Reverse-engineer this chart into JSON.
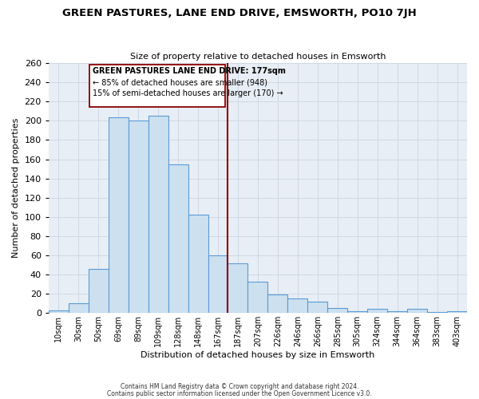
{
  "title": "GREEN PASTURES, LANE END DRIVE, EMSWORTH, PO10 7JH",
  "subtitle": "Size of property relative to detached houses in Emsworth",
  "xlabel": "Distribution of detached houses by size in Emsworth",
  "ylabel": "Number of detached properties",
  "bar_labels": [
    "10sqm",
    "30sqm",
    "50sqm",
    "69sqm",
    "89sqm",
    "109sqm",
    "128sqm",
    "148sqm",
    "167sqm",
    "187sqm",
    "207sqm",
    "226sqm",
    "246sqm",
    "266sqm",
    "285sqm",
    "305sqm",
    "324sqm",
    "344sqm",
    "364sqm",
    "383sqm",
    "403sqm"
  ],
  "bar_values": [
    3,
    10,
    46,
    204,
    200,
    205,
    155,
    102,
    60,
    52,
    33,
    19,
    15,
    12,
    5,
    2,
    4,
    2,
    4,
    1,
    2
  ],
  "bar_color": "#cce0f0",
  "bar_edge_color": "#5b9bd5",
  "grid_color": "#d0d8e4",
  "background_color": "#e8eef5",
  "vline_x_index": 8.47,
  "vline_color": "#8b0000",
  "annotation_title": "GREEN PASTURES LANE END DRIVE: 177sqm",
  "annotation_line1": "← 85% of detached houses are smaller (948)",
  "annotation_line2": "15% of semi-detached houses are larger (170) →",
  "annotation_box_color": "#ffffff",
  "annotation_box_edge": "#8b0000",
  "ylim": [
    0,
    260
  ],
  "yticks": [
    0,
    20,
    40,
    60,
    80,
    100,
    120,
    140,
    160,
    180,
    200,
    220,
    240,
    260
  ],
  "footer1": "Contains HM Land Registry data © Crown copyright and database right 2024.",
  "footer2": "Contains public sector information licensed under the Open Government Licence v3.0."
}
